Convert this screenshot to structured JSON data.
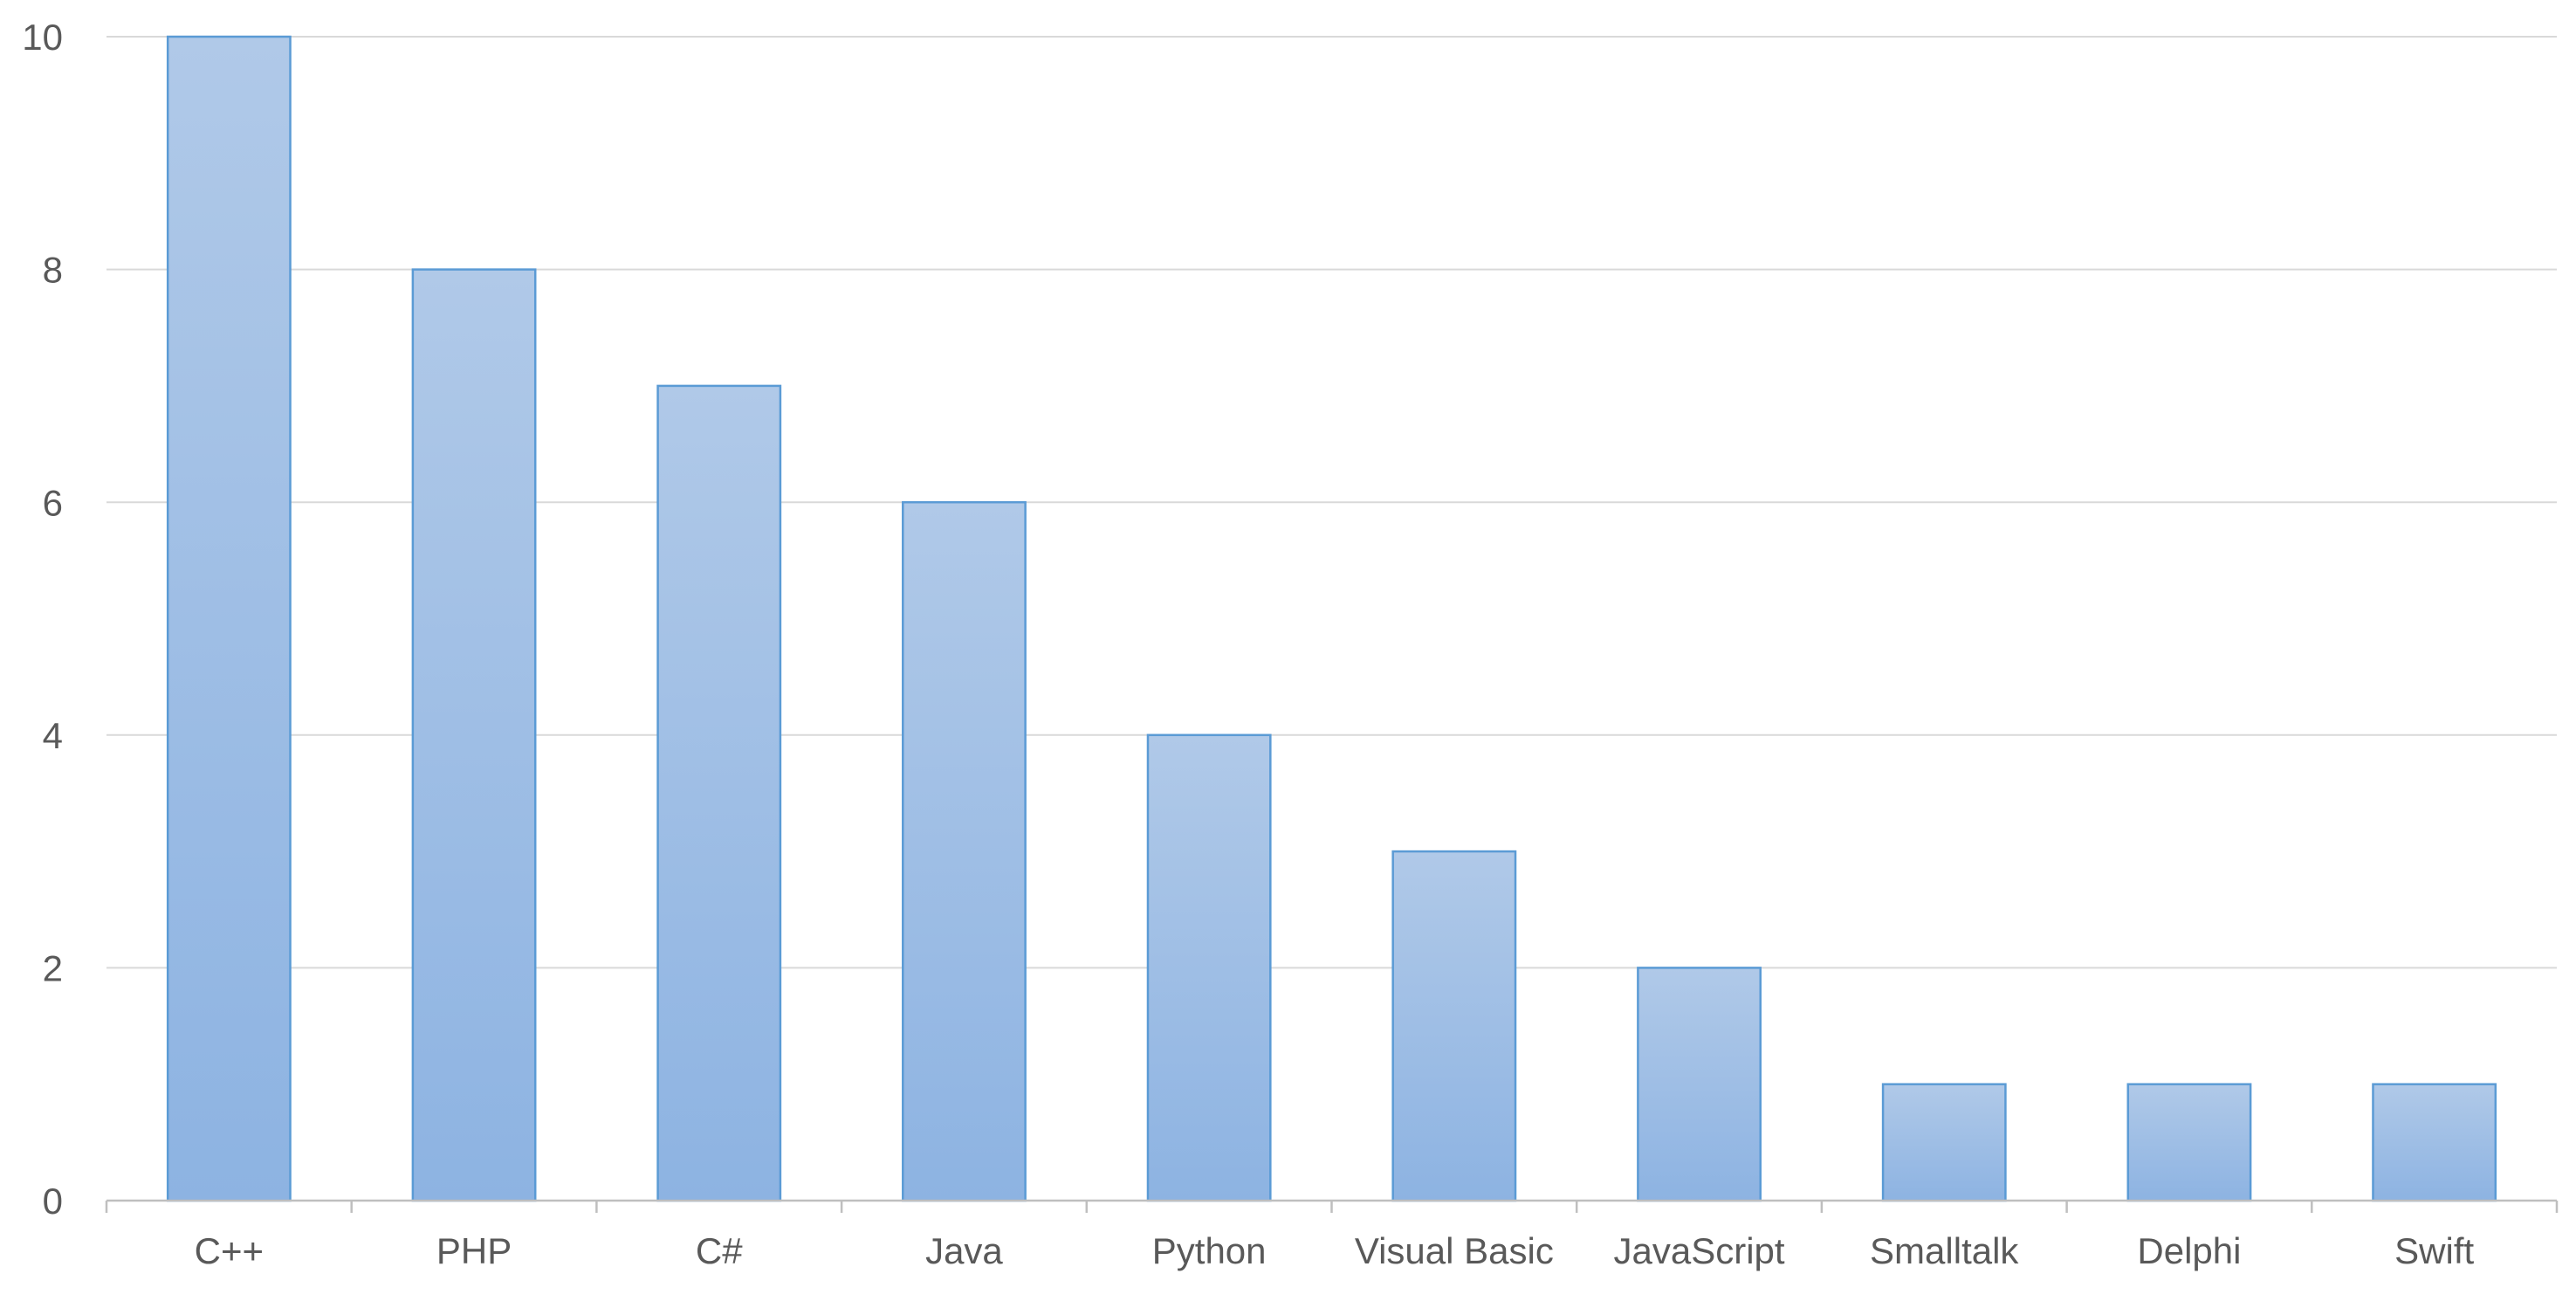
{
  "chart_data": {
    "type": "bar",
    "title": "",
    "xlabel": "",
    "ylabel": "",
    "categories": [
      "C++",
      "PHP",
      "C#",
      "Java",
      "Python",
      "Visual Basic",
      "JavaScript",
      "Smalltalk",
      "Delphi",
      "Swift"
    ],
    "values": [
      10,
      8,
      7,
      6,
      4,
      3,
      2,
      1,
      1,
      1
    ],
    "ylim": [
      0,
      10
    ],
    "yticks": [
      0,
      2,
      4,
      6,
      8,
      10
    ],
    "grid": true,
    "legend": "none",
    "colors": {
      "bar_top": "#b0c9e8",
      "bar_bottom": "#8db3e2",
      "bar_stroke": "#5b9bd5",
      "grid": "#d9d9d9",
      "axis": "#bfbfbf",
      "tick_text": "#595959"
    }
  }
}
